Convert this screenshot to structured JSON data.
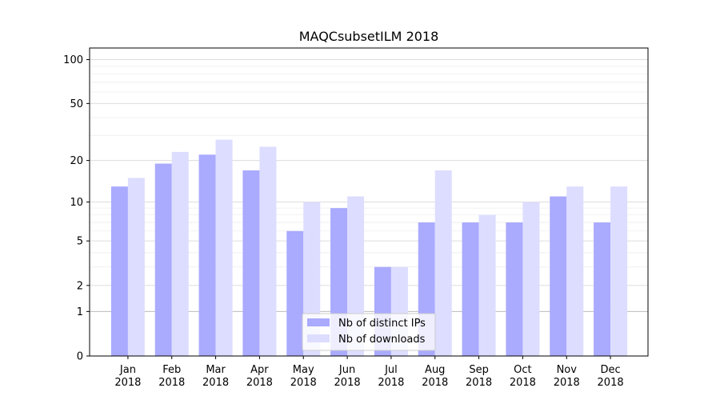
{
  "chart_data": {
    "type": "bar",
    "title": "MAQCsubsetILM 2018",
    "xlabel": "",
    "ylabel": "",
    "scale": "log1p",
    "categories": [
      "Jan\n2018",
      "Feb\n2018",
      "Mar\n2018",
      "Apr\n2018",
      "May\n2018",
      "Jun\n2018",
      "Jul\n2018",
      "Aug\n2018",
      "Sep\n2018",
      "Oct\n2018",
      "Nov\n2018",
      "Dec\n2018"
    ],
    "series": [
      {
        "name": "Nb of distinct IPs",
        "color": "#aaaaff",
        "values": [
          13,
          19,
          22,
          17,
          6,
          9,
          3,
          7,
          7,
          7,
          11,
          7
        ]
      },
      {
        "name": "Nb of downloads",
        "color": "#ddddff",
        "values": [
          15,
          23,
          28,
          25,
          10,
          11,
          3,
          17,
          8,
          10,
          13,
          13
        ]
      }
    ],
    "yticks": [
      0,
      1,
      2,
      5,
      10,
      20,
      50,
      100
    ],
    "ylim": [
      0,
      120
    ],
    "grid": true,
    "legend_position": "bottom-center"
  }
}
